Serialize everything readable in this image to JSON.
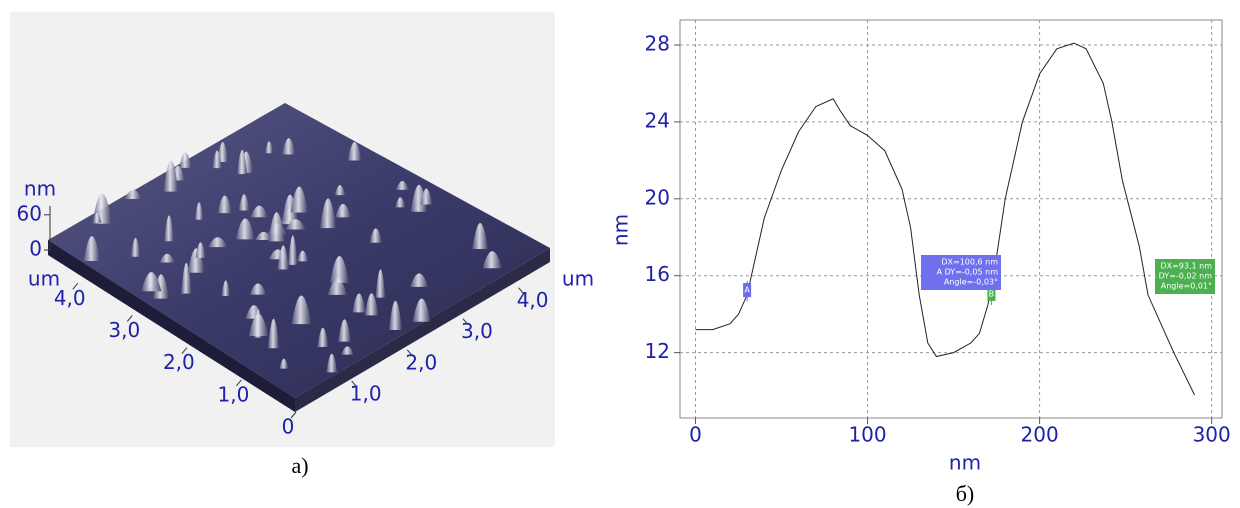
{
  "chart_data": [
    {
      "type": "surface",
      "x_label": "um",
      "y_label": "um",
      "z_label": "nm",
      "xlim": [
        0,
        4.6
      ],
      "xticks": [
        0,
        {
          "value": 1,
          "label": "1,0"
        },
        {
          "value": 2,
          "label": "2,0"
        },
        {
          "value": 3,
          "label": "3,0"
        },
        {
          "value": 4,
          "label": "4,0"
        }
      ],
      "ylim": [
        0,
        4.6
      ],
      "yticks": [
        {
          "value": 1,
          "label": "1,0"
        },
        {
          "value": 2,
          "label": "2,0"
        },
        {
          "value": 3,
          "label": "3,0"
        },
        {
          "value": 4,
          "label": "4,0"
        }
      ],
      "zlim": [
        0,
        75
      ],
      "zticks": [
        0,
        60
      ],
      "caption": "а)"
    },
    {
      "type": "line",
      "x_label": "nm",
      "y_label": "nm",
      "color": "#222222",
      "x": [
        0,
        10,
        20,
        25,
        30,
        35,
        40,
        50,
        60,
        70,
        80,
        84,
        90,
        100,
        110,
        120,
        125,
        130,
        135,
        140,
        150,
        160,
        165,
        170,
        175,
        180,
        190,
        200,
        210,
        220,
        227,
        237,
        242,
        248,
        258,
        263,
        268,
        278,
        290
      ],
      "values": [
        13.2,
        13.2,
        13.5,
        14,
        15,
        17,
        19,
        21.5,
        23.5,
        24.8,
        25.2,
        24.6,
        23.8,
        23.3,
        22.5,
        20.5,
        18.5,
        15,
        12.5,
        11.8,
        12,
        12.5,
        13,
        14.5,
        17,
        20,
        24,
        26.5,
        27.8,
        28.1,
        27.8,
        26,
        24,
        21,
        17.5,
        15,
        14,
        12,
        9.8
      ],
      "xlim": [
        -9,
        306
      ],
      "xticks": [
        0,
        100,
        200,
        300
      ],
      "ylim": [
        8.6,
        29.3
      ],
      "yticks": [
        12,
        16,
        20,
        24,
        28
      ],
      "grid": true,
      "markers": [
        {
          "label": "A",
          "x": 30,
          "y": 15.2,
          "color": "#6b6be8"
        },
        {
          "label": "B",
          "x": 172,
          "y": 15.0,
          "color": "#4caf50"
        }
      ],
      "readouts": [
        {
          "lines": [
            "DX=100,6 nm",
            "A DY=-0,05 nm",
            "Angle=-0,03°"
          ],
          "color": "#7070ee"
        },
        {
          "lines": [
            "DX=93,1 nm",
            "B DY=-0,02 nm",
            "Angle=0,01°"
          ],
          "color": "#4caf50"
        }
      ],
      "caption": "б)"
    }
  ]
}
